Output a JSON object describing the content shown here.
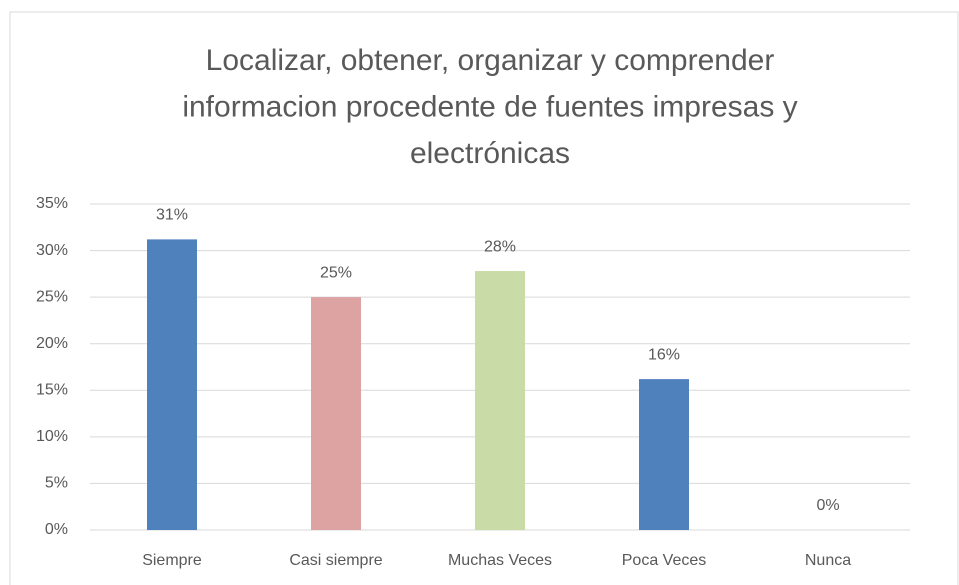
{
  "chart_data": {
    "type": "bar",
    "title": [
      "Localizar, obtener, organizar y comprender",
      "informacion procedente de fuentes impresas y",
      "electrónicas"
    ],
    "categories": [
      "Siempre",
      "Casi siempre",
      "Muchas Veces",
      "Poca Veces",
      "Nunca"
    ],
    "values": [
      31.2,
      25,
      27.8,
      16.2,
      0
    ],
    "value_labels": [
      "31%",
      "25%",
      "28%",
      "16%",
      "0%"
    ],
    "colors": [
      "#4f81bd",
      "#dca3a2",
      "#c9dba6",
      "#4f81bd",
      "#4f81bd"
    ],
    "ylim": [
      0,
      35
    ],
    "yticks": [
      {
        "value": 0,
        "label": "0%"
      },
      {
        "value": 5,
        "label": "5%"
      },
      {
        "value": 10,
        "label": "10%"
      },
      {
        "value": 15,
        "label": "15%"
      },
      {
        "value": 20,
        "label": "20%"
      },
      {
        "value": 25,
        "label": "25%"
      },
      {
        "value": 30,
        "label": "30%"
      },
      {
        "value": 35,
        "label": "35%"
      }
    ],
    "grid": true
  }
}
